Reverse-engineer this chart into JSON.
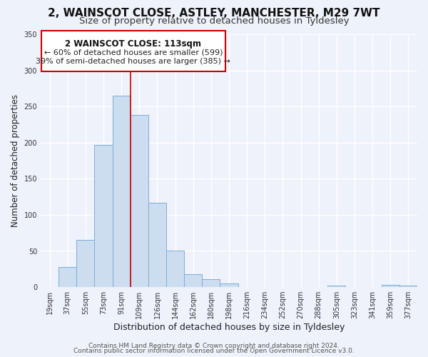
{
  "title": "2, WAINSCOT CLOSE, ASTLEY, MANCHESTER, M29 7WT",
  "subtitle": "Size of property relative to detached houses in Tyldesley",
  "xlabel": "Distribution of detached houses by size in Tyldesley",
  "ylabel": "Number of detached properties",
  "bar_labels": [
    "19sqm",
    "37sqm",
    "55sqm",
    "73sqm",
    "91sqm",
    "109sqm",
    "126sqm",
    "144sqm",
    "162sqm",
    "180sqm",
    "198sqm",
    "216sqm",
    "234sqm",
    "252sqm",
    "270sqm",
    "288sqm",
    "305sqm",
    "323sqm",
    "341sqm",
    "359sqm",
    "377sqm"
  ],
  "bar_heights": [
    0,
    28,
    65,
    197,
    265,
    238,
    117,
    50,
    18,
    11,
    5,
    0,
    0,
    0,
    0,
    0,
    2,
    0,
    0,
    3,
    2
  ],
  "bar_color": "#ccddf0",
  "bar_edge_color": "#7aaddc",
  "ylim": [
    0,
    350
  ],
  "yticks": [
    0,
    50,
    100,
    150,
    200,
    250,
    300,
    350
  ],
  "vline_x_index": 5,
  "vline_color": "#cc0000",
  "annotation_title": "2 WAINSCOT CLOSE: 113sqm",
  "annotation_line1": "← 60% of detached houses are smaller (599)",
  "annotation_line2": "39% of semi-detached houses are larger (385) →",
  "annotation_box_facecolor": "#ffffff",
  "annotation_box_edge": "#cc0000",
  "footer1": "Contains HM Land Registry data © Crown copyright and database right 2024.",
  "footer2": "Contains public sector information licensed under the Open Government Licence v3.0.",
  "bg_color": "#eef2fb",
  "plot_bg_color": "#eef2fb",
  "title_fontsize": 11,
  "subtitle_fontsize": 9.5,
  "xlabel_fontsize": 9,
  "ylabel_fontsize": 8.5,
  "tick_fontsize": 7,
  "annotation_title_fontsize": 8.5,
  "annotation_line_fontsize": 8,
  "footer_fontsize": 6.5
}
